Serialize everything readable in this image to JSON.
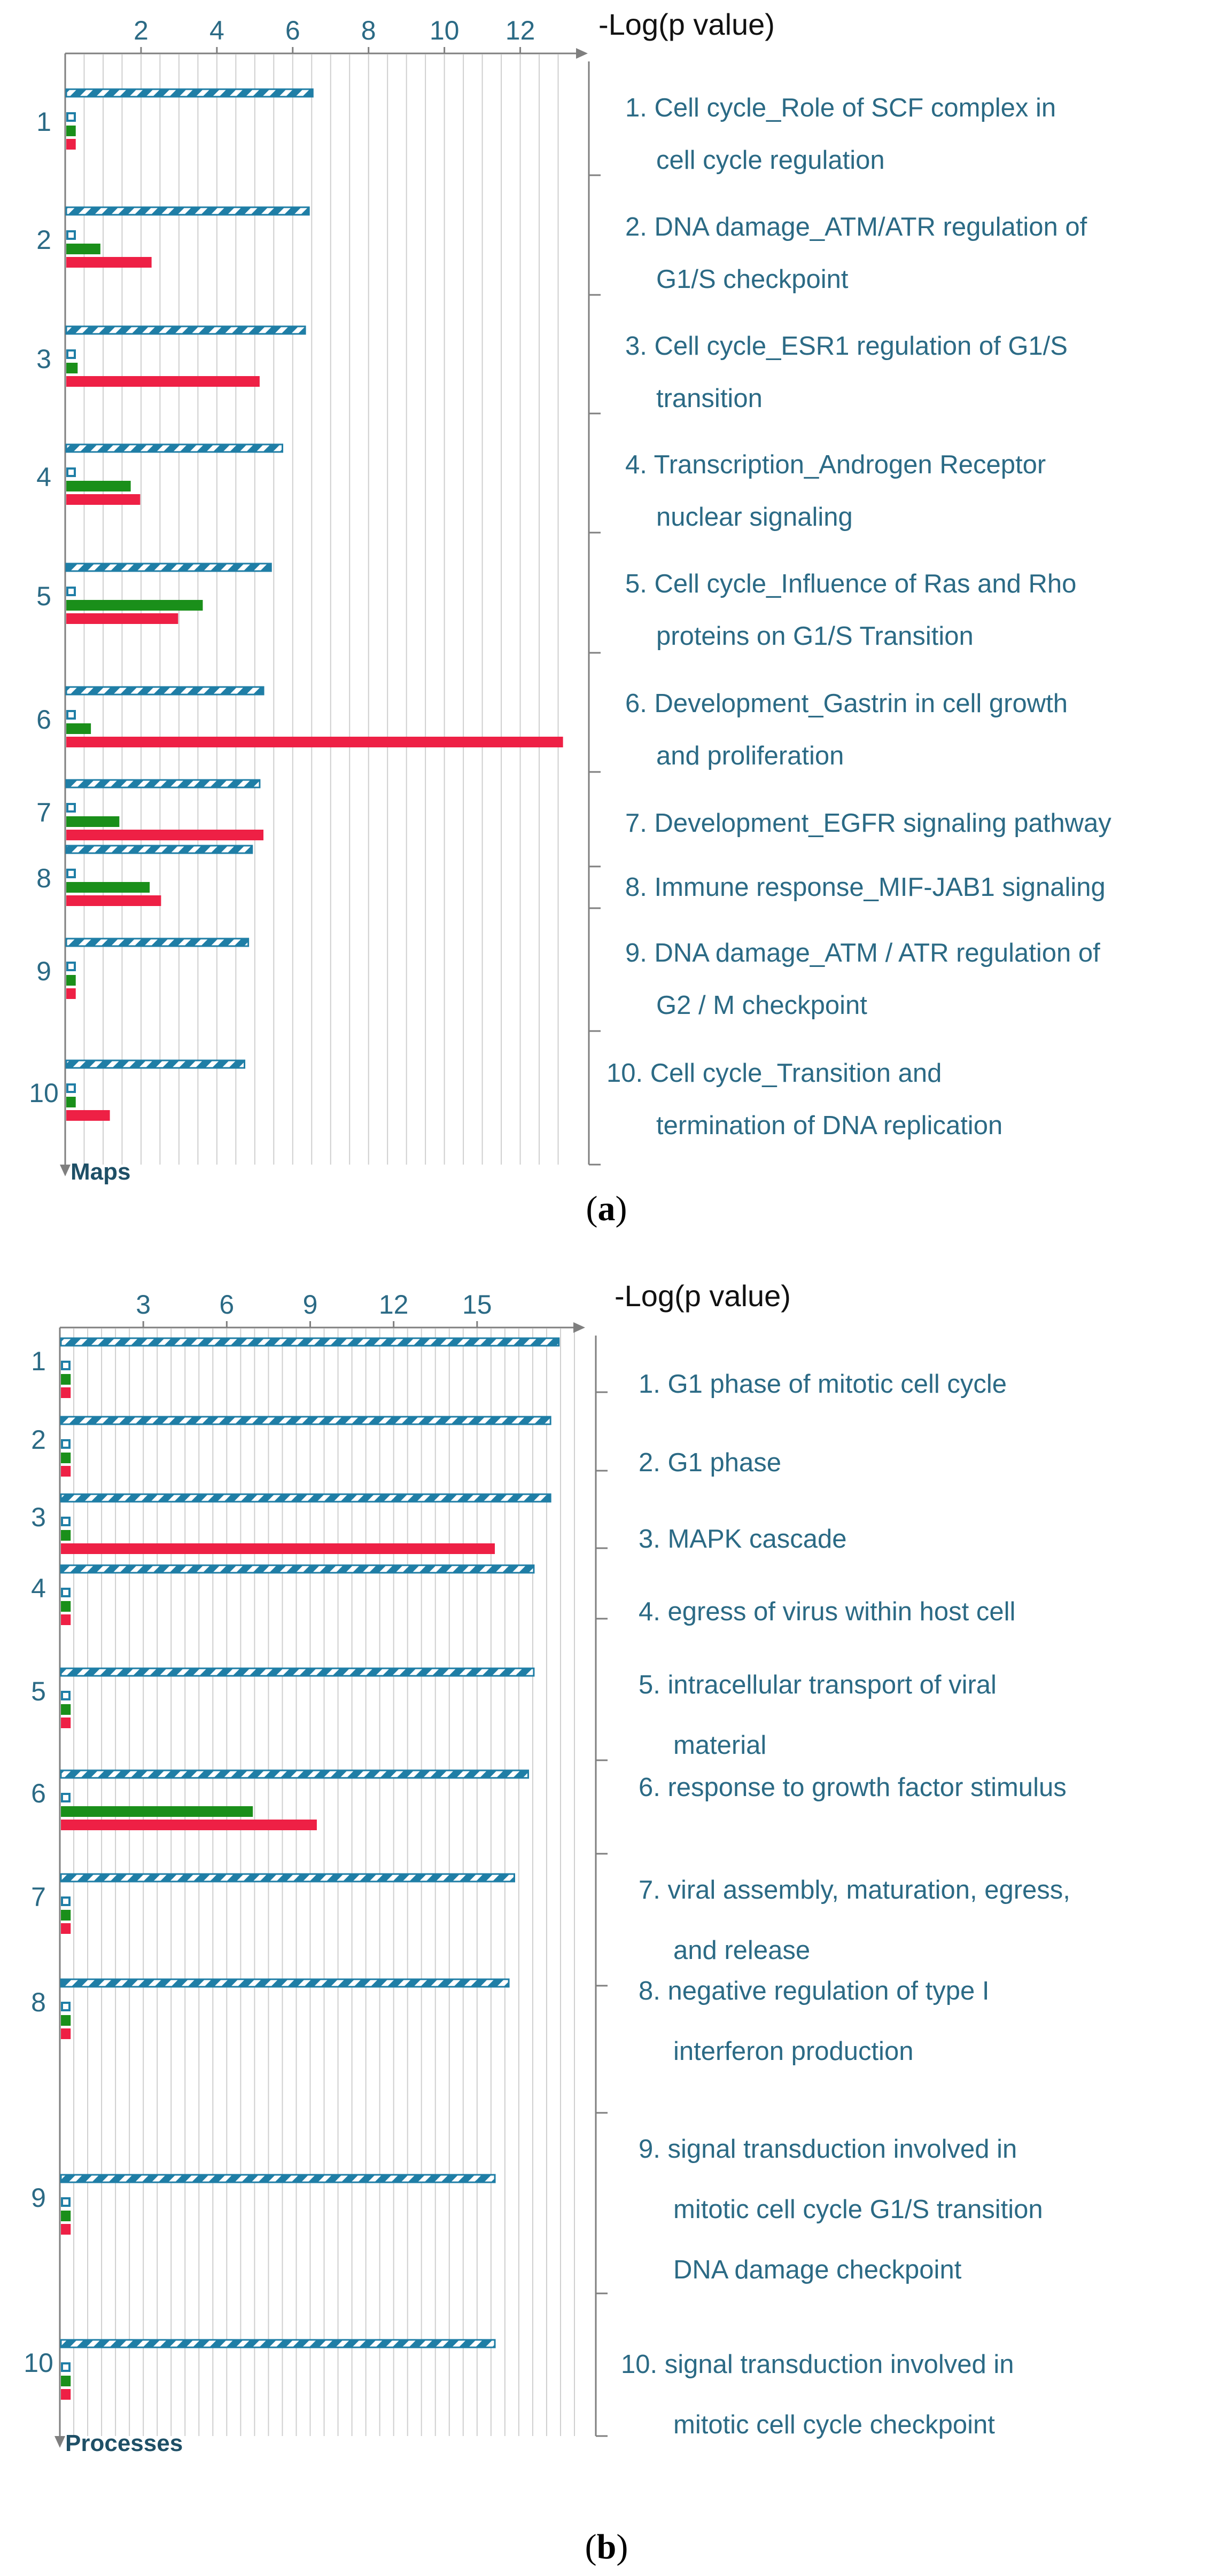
{
  "colors": {
    "axis": "#7f7f7f",
    "grid": "#cfcfcf",
    "text": "#2b6a85",
    "label_text": "#1e4f66",
    "stripe_blue": "#1f7ea6",
    "green": "#1a8f1a",
    "red": "#ee2045",
    "small_square": "#1f7ea6"
  },
  "chart_data": [
    {
      "type": "bar",
      "panel_label": "a",
      "axis_title": "-Log(p value)",
      "category_axis_label": "Maps",
      "xlim": [
        0,
        13.5
      ],
      "ticks": [
        "2",
        "4",
        "6",
        "8",
        "10",
        "12"
      ],
      "tick_values": [
        2,
        4,
        6,
        8,
        10,
        12
      ],
      "categories": [
        "1",
        "2",
        "3",
        "4",
        "5",
        "6",
        "7",
        "8",
        "9",
        "10"
      ],
      "labels": [
        [
          "1. Cell cycle_Role of SCF complex in",
          "cell cycle regulation"
        ],
        [
          "2. DNA damage_ATM/ATR regulation of",
          "G1/S checkpoint"
        ],
        [
          "3. Cell cycle_ESR1 regulation of G1/S",
          "transition"
        ],
        [
          "4. Transcription_Androgen Receptor",
          "nuclear signaling"
        ],
        [
          "5. Cell cycle_Influence of Ras and Rho",
          "proteins on G1/S Transition"
        ],
        [
          "6. Development_Gastrin in cell growth",
          "and proliferation"
        ],
        [
          "7. Development_EGFR signaling pathway"
        ],
        [
          "8. Immune response_MIF-JAB1 signaling"
        ],
        [
          "9. DNA damage_ATM / ATR regulation of",
          "G2 / M checkpoint"
        ],
        [
          "10. Cell cycle_Transition and",
          "termination of DNA replication"
        ]
      ],
      "series": [
        {
          "name": "Striped",
          "values": [
            6.5,
            6.4,
            6.3,
            5.7,
            5.4,
            5.2,
            5.1,
            4.9,
            4.8,
            4.7
          ]
        },
        {
          "name": "Square",
          "values": [
            0.25,
            0.25,
            0.25,
            0.25,
            0.25,
            0.25,
            0.25,
            0.25,
            0.25,
            0.25
          ]
        },
        {
          "name": "Green",
          "values": [
            0.25,
            0.9,
            0.3,
            1.7,
            3.6,
            0.65,
            1.4,
            2.2,
            0.25,
            0.25
          ]
        },
        {
          "name": "Red",
          "values": [
            0.25,
            2.25,
            5.1,
            1.95,
            2.95,
            13.1,
            5.2,
            2.5,
            0.25,
            1.15
          ]
        }
      ]
    },
    {
      "type": "bar",
      "panel_label": "b",
      "axis_title": "-Log(p value)",
      "category_axis_label": "Processes",
      "xlim": [
        0,
        18.5
      ],
      "ticks": [
        "3",
        "6",
        "9",
        "12",
        "15"
      ],
      "tick_values": [
        3,
        6,
        9,
        12,
        15
      ],
      "categories": [
        "1",
        "2",
        "3",
        "4",
        "5",
        "6",
        "7",
        "8",
        "9",
        "10"
      ],
      "labels": [
        [
          "1. G1 phase of mitotic cell cycle"
        ],
        [
          "2. G1 phase"
        ],
        [
          "3. MAPK cascade"
        ],
        [
          "4. egress of virus within host cell"
        ],
        [
          "5. intracellular transport of viral",
          "material"
        ],
        [
          "6. response to growth factor stimulus"
        ],
        [
          "7. viral assembly, maturation, egress,",
          "and release"
        ],
        [
          "8. negative regulation of type I",
          "interferon production"
        ],
        [
          "9. signal transduction involved in",
          "mitotic cell cycle G1/S transition",
          "DNA damage checkpoint"
        ],
        [
          "10. signal transduction involved in",
          "mitotic cell cycle checkpoint"
        ]
      ],
      "series": [
        {
          "name": "Striped",
          "values": [
            17.9,
            17.6,
            17.6,
            17.0,
            17.0,
            16.8,
            16.3,
            16.1,
            15.6,
            15.6
          ]
        },
        {
          "name": "Square",
          "values": [
            0.35,
            0.35,
            0.35,
            0.35,
            0.35,
            0.35,
            0.35,
            0.35,
            0.35,
            0.35
          ]
        },
        {
          "name": "Green",
          "values": [
            0.35,
            0.35,
            0.35,
            0.35,
            0.35,
            6.9,
            0.35,
            0.35,
            0.35,
            0.35
          ]
        },
        {
          "name": "Red",
          "values": [
            0.35,
            0.35,
            15.6,
            0.35,
            0.35,
            9.2,
            0.35,
            0.35,
            0.35,
            0.35
          ]
        }
      ]
    }
  ]
}
